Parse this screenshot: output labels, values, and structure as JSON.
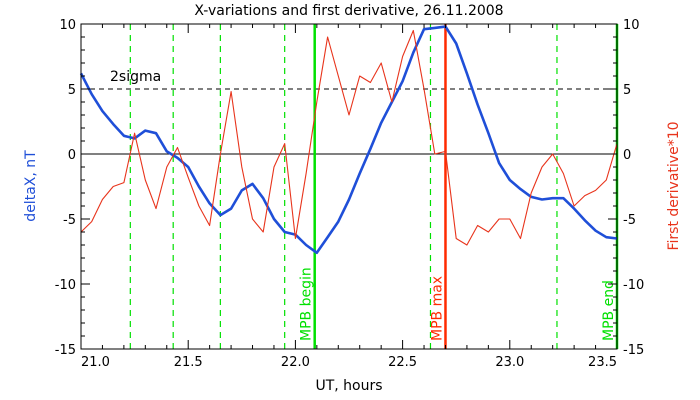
{
  "chart_data": {
    "type": "line",
    "title": "X-variations and first derivative, 26.11.2008",
    "xlabel": "UT, hours",
    "ylabel_left": "deltaX, nT",
    "ylabel_right": "First derivative*10",
    "xlim": [
      21.0,
      23.5
    ],
    "ylim": [
      -15,
      10
    ],
    "x_ticks": [
      21.0,
      21.5,
      22.0,
      22.5,
      23.0,
      23.5
    ],
    "x_tick_labels": [
      "21.0",
      "21.5",
      "22.0",
      "22.5",
      "23.0",
      "23.5"
    ],
    "y_ticks": [
      10,
      5,
      0,
      -5,
      -10,
      -15
    ],
    "y_tick_labels": [
      "10",
      "5",
      "0",
      "-5",
      "-10",
      "-15"
    ],
    "colors": {
      "deltaX": "#1f4fd8",
      "derivative": "#e8341c",
      "marker_green": "#00e000",
      "marker_red": "#ff2a00",
      "left_label": "#1f4fd8",
      "right_label": "#e8341c"
    },
    "series": [
      {
        "key": "deltaX",
        "x": [
          21.0,
          21.05,
          21.1,
          21.15,
          21.2,
          21.25,
          21.3,
          21.35,
          21.4,
          21.45,
          21.5,
          21.55,
          21.6,
          21.65,
          21.7,
          21.75,
          21.8,
          21.85,
          21.9,
          21.95,
          22.0,
          22.05,
          22.1,
          22.15,
          22.2,
          22.25,
          22.3,
          22.35,
          22.4,
          22.45,
          22.5,
          22.55,
          22.6,
          22.65,
          22.7,
          22.75,
          22.8,
          22.85,
          22.9,
          22.95,
          23.0,
          23.05,
          23.1,
          23.15,
          23.2,
          23.25,
          23.3,
          23.35,
          23.4,
          23.45,
          23.5
        ],
        "values": [
          6.2,
          4.6,
          3.3,
          2.3,
          1.4,
          1.2,
          1.8,
          1.6,
          0.2,
          -0.3,
          -1.0,
          -2.5,
          -3.8,
          -4.7,
          -4.2,
          -2.8,
          -2.3,
          -3.4,
          -5.0,
          -6.0,
          -6.2,
          -7.0,
          -7.6,
          -6.4,
          -5.2,
          -3.5,
          -1.5,
          0.4,
          2.4,
          4.0,
          5.6,
          7.8,
          9.6,
          9.7,
          9.8,
          8.5,
          6.2,
          3.8,
          1.6,
          -0.7,
          -2.0,
          -2.7,
          -3.3,
          -3.5,
          -3.4,
          -3.4,
          -4.2,
          -5.1,
          -5.9,
          -6.4,
          -6.5
        ]
      },
      {
        "key": "derivative",
        "x": [
          21.0,
          21.05,
          21.1,
          21.15,
          21.2,
          21.25,
          21.3,
          21.35,
          21.4,
          21.45,
          21.5,
          21.55,
          21.6,
          21.65,
          21.7,
          21.75,
          21.8,
          21.85,
          21.9,
          21.95,
          22.0,
          22.05,
          22.1,
          22.15,
          22.2,
          22.25,
          22.3,
          22.35,
          22.4,
          22.45,
          22.5,
          22.55,
          22.6,
          22.65,
          22.7,
          22.75,
          22.8,
          22.85,
          22.9,
          22.95,
          23.0,
          23.05,
          23.1,
          23.15,
          23.2,
          23.25,
          23.3,
          23.35,
          23.4,
          23.45,
          23.5
        ],
        "values": [
          -6.0,
          -5.2,
          -3.5,
          -2.5,
          -2.2,
          1.6,
          -2.0,
          -4.2,
          -1.0,
          0.5,
          -1.8,
          -4.0,
          -5.5,
          0.0,
          4.8,
          -1.0,
          -5.0,
          -6.0,
          -1.0,
          0.8,
          -6.5,
          -1.5,
          4.0,
          9.0,
          6.0,
          3.0,
          6.0,
          5.5,
          7.0,
          4.0,
          7.5,
          9.5,
          5.0,
          0.0,
          0.2,
          -6.5,
          -7.0,
          -5.5,
          -6.0,
          -5.0,
          -5.0,
          -6.5,
          -3.0,
          -1.0,
          0.0,
          -1.5,
          -4.0,
          -3.2,
          -2.8,
          -2.0,
          0.8
        ]
      }
    ],
    "reference_lines": [
      {
        "key": "sigma2",
        "y": 5,
        "label": "2sigma",
        "style": "dashed"
      },
      {
        "key": "zero",
        "y": 0,
        "label": "",
        "style": "solid"
      }
    ],
    "markers": [
      {
        "x": 21.23,
        "style": "dashed",
        "color_key": "marker_green",
        "label": ""
      },
      {
        "x": 21.43,
        "style": "dashed",
        "color_key": "marker_green",
        "label": ""
      },
      {
        "x": 21.65,
        "style": "dashed",
        "color_key": "marker_green",
        "label": ""
      },
      {
        "x": 21.95,
        "style": "dashed",
        "color_key": "marker_green",
        "label": ""
      },
      {
        "x": 22.09,
        "style": "solid",
        "color_key": "marker_green",
        "label": "MPB begin"
      },
      {
        "x": 22.63,
        "style": "dashed",
        "color_key": "marker_green",
        "label": ""
      },
      {
        "x": 22.7,
        "style": "solid",
        "color_key": "marker_red",
        "label": "MPB max"
      },
      {
        "x": 23.22,
        "style": "dashed",
        "color_key": "marker_green",
        "label": ""
      },
      {
        "x": 23.5,
        "style": "solid",
        "color_key": "marker_green",
        "label": "MPB end"
      }
    ],
    "grid": false
  }
}
